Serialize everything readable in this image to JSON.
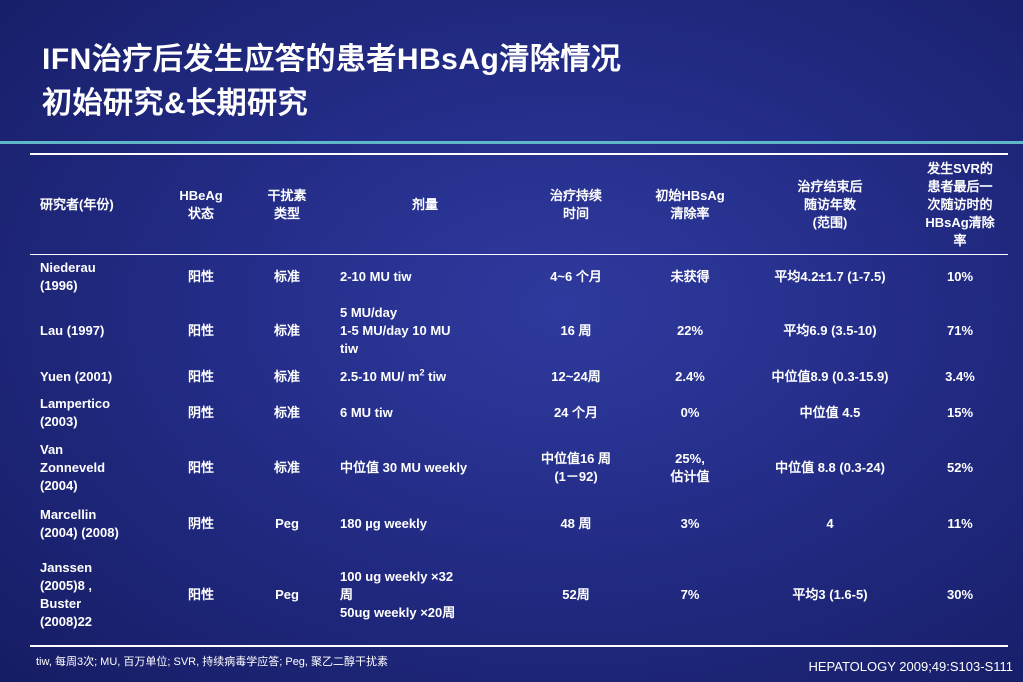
{
  "title": {
    "line1": "IFN治疗后发生应答的患者HBsAg清除情况",
    "line2": "初始研究&长期研究"
  },
  "table": {
    "headers": [
      [
        "研究者(年份)"
      ],
      [
        "HBeAg",
        "状态"
      ],
      [
        "干扰素",
        "类型"
      ],
      [
        "剂量"
      ],
      [
        "治疗持续",
        "时间"
      ],
      [
        "初始HBsAg",
        "清除率"
      ],
      [
        "治疗结束后",
        "随访年数",
        "(范围)"
      ],
      [
        "发生SVR的",
        "患者最后一",
        "次随访时的",
        "HBsAg清除",
        "率"
      ]
    ],
    "rows": [
      {
        "study": [
          "Niederau",
          "(1996)"
        ],
        "hbeag": "阳性",
        "ifn": "标准",
        "dose": [
          "2-10 MU tiw"
        ],
        "duration": [
          "4~6 个月"
        ],
        "initial": [
          "未获得"
        ],
        "followup": "平均4.2±1.7 (1-7.5)",
        "svr": "10%"
      },
      {
        "study": [
          "Lau (1997)"
        ],
        "hbeag": "阳性",
        "ifn": "标准",
        "dose": [
          "5 MU/day",
          "1-5 MU/day 10 MU",
          "tiw"
        ],
        "duration": [
          "16 周"
        ],
        "initial": [
          "22%"
        ],
        "followup": "平均6.9 (3.5-10)",
        "svr": "71%"
      },
      {
        "study": [
          "Yuen (2001)"
        ],
        "hbeag": "阳性",
        "ifn": "标准",
        "dose_prefix": "2.5-10 MU/ m",
        "dose_sup": "2",
        "dose_suffix": " tiw",
        "duration": [
          "12~24周"
        ],
        "initial": [
          "2.4%"
        ],
        "followup": "中位值8.9 (0.3-15.9)",
        "svr": "3.4%"
      },
      {
        "study": [
          "Lampertico",
          "(2003)"
        ],
        "hbeag": "阴性",
        "ifn": "标准",
        "dose": [
          "6 MU tiw"
        ],
        "duration": [
          "24 个月"
        ],
        "initial": [
          "0%"
        ],
        "followup": "中位值 4.5",
        "svr": "15%"
      },
      {
        "study": [
          "Van",
          "Zonneveld",
          "(2004)"
        ],
        "hbeag": "阳性",
        "ifn": "标准",
        "dose": [
          "中位值 30 MU weekly"
        ],
        "duration": [
          "中位值16 周",
          "(1－92)"
        ],
        "initial": [
          "25%,",
          "估计值"
        ],
        "followup": "中位值 8.8 (0.3-24)",
        "svr": "52%"
      },
      {
        "study": [
          "Marcellin",
          "(2004) (2008)"
        ],
        "hbeag": "阴性",
        "ifn": "Peg",
        "dose": [
          "180  µg weekly"
        ],
        "duration": [
          "48 周"
        ],
        "initial": [
          "3%"
        ],
        "followup": "4",
        "svr": "11%"
      },
      {
        "study": [
          "Janssen",
          "(2005)8 ,",
          "Buster",
          "(2008)22"
        ],
        "hbeag": "阳性",
        "ifn": "Peg",
        "dose": [
          "100 ug weekly ×32",
          "周",
          "50ug weekly ×20周"
        ],
        "duration": [
          "52周"
        ],
        "initial": [
          "7%"
        ],
        "followup": "平均3 (1.6-5)",
        "svr": "30%"
      }
    ]
  },
  "footnote": "tiw, 每周3次; MU, 百万单位; SVR, 持续病毒学应答; Peg, 聚乙二醇干扰素",
  "citation": "HEPATOLOGY 2009;49:S103-S111",
  "colors": {
    "background": "#232c86",
    "accent_rule": "#5fb7c8",
    "text": "#ffffff"
  }
}
